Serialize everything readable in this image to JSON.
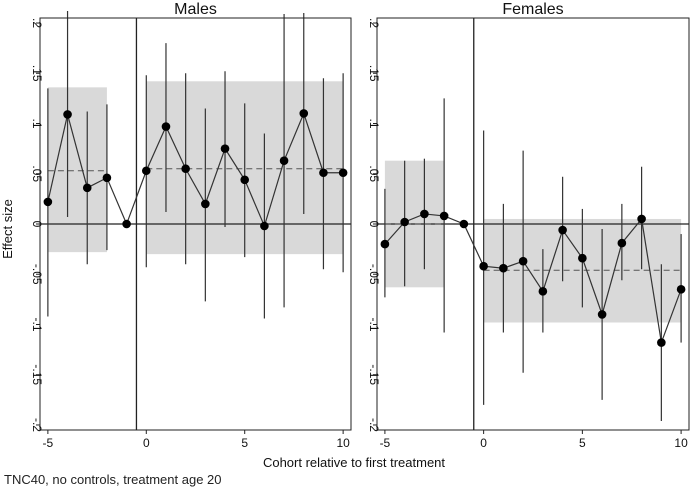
{
  "caption": "TNC40, no controls, treatment age 20",
  "chart_data": [
    {
      "type": "scatter",
      "panel": "Males",
      "title": "Males",
      "xlabel": "Cohort relative to first treatment",
      "ylabel": "Effect size",
      "xlim": [
        -5.4,
        10.4
      ],
      "ylim": [
        -0.205,
        0.205
      ],
      "x_ticks": [
        -5,
        0,
        5,
        10
      ],
      "x_tick_labels": [
        "-5",
        "0",
        "5",
        "10"
      ],
      "y_ticks": [
        -0.2,
        -0.15,
        -0.1,
        -0.05,
        0,
        0.05,
        0.1,
        0.15,
        0.2
      ],
      "y_tick_labels": [
        "-.2",
        "-.15",
        "-.1",
        "-.05",
        "0",
        ".05",
        ".1",
        ".15",
        ".2"
      ],
      "treatment_line_x": -0.5,
      "zero_line": 0,
      "pre_band": {
        "x_start": -5,
        "x_end": -2,
        "low": -0.028,
        "high": 0.136,
        "mean": 0.053
      },
      "post_band": {
        "x_start": 0,
        "x_end": 10,
        "low": -0.03,
        "high": 0.142,
        "mean": 0.055
      },
      "series": [
        {
          "name": "estimate",
          "x": [
            -5,
            -4,
            -3,
            -2,
            -1,
            0,
            1,
            2,
            3,
            4,
            5,
            6,
            7,
            8,
            9,
            10
          ],
          "y": [
            0.022,
            0.109,
            0.036,
            0.046,
            0.0,
            0.053,
            0.097,
            0.055,
            0.02,
            0.075,
            0.044,
            -0.002,
            0.063,
            0.11,
            0.051,
            0.051
          ],
          "ci_low": [
            -0.092,
            0.007,
            -0.04,
            -0.026,
            null,
            -0.043,
            0.012,
            -0.04,
            -0.077,
            -0.003,
            -0.033,
            -0.094,
            -0.083,
            0.01,
            -0.045,
            -0.048
          ],
          "ci_high": [
            0.135,
            0.212,
            0.112,
            0.119,
            null,
            0.148,
            0.18,
            0.15,
            0.115,
            0.152,
            0.12,
            0.09,
            0.209,
            0.21,
            0.145,
            0.15
          ]
        }
      ]
    },
    {
      "type": "scatter",
      "panel": "Females",
      "title": "Females",
      "xlabel": "Cohort relative to first treatment",
      "ylabel": "Effect size",
      "xlim": [
        -5.4,
        10.4
      ],
      "ylim": [
        -0.205,
        0.205
      ],
      "x_ticks": [
        -5,
        0,
        5,
        10
      ],
      "x_tick_labels": [
        "-5",
        "0",
        "5",
        "10"
      ],
      "y_ticks": [
        -0.2,
        -0.15,
        -0.1,
        -0.05,
        0,
        0.05,
        0.1,
        0.15,
        0.2
      ],
      "y_tick_labels": [
        "-.2",
        "-.15",
        "-.1",
        "-.05",
        "0",
        ".05",
        ".1",
        ".15",
        ".2"
      ],
      "treatment_line_x": -0.5,
      "zero_line": 0,
      "pre_band": {
        "x_start": -5,
        "x_end": -2,
        "low": -0.063,
        "high": 0.063,
        "mean": 0.0
      },
      "post_band": {
        "x_start": 0,
        "x_end": 10,
        "low": -0.098,
        "high": 0.005,
        "mean": -0.046
      },
      "series": [
        {
          "name": "estimate",
          "x": [
            -5,
            -4,
            -3,
            -2,
            -1,
            0,
            1,
            2,
            3,
            4,
            5,
            6,
            7,
            8,
            9,
            10
          ],
          "y": [
            -0.02,
            0.002,
            0.01,
            0.008,
            0.0,
            -0.042,
            -0.044,
            -0.037,
            -0.067,
            -0.006,
            -0.034,
            -0.09,
            -0.019,
            0.005,
            -0.118,
            -0.065
          ],
          "ci_low": [
            -0.073,
            -0.062,
            -0.045,
            -0.108,
            null,
            -0.18,
            -0.108,
            -0.148,
            -0.108,
            -0.057,
            -0.083,
            -0.175,
            -0.056,
            -0.045,
            -0.196,
            -0.118
          ],
          "ci_high": [
            0.035,
            0.063,
            0.065,
            0.125,
            null,
            0.093,
            0.02,
            0.073,
            -0.025,
            0.047,
            0.015,
            -0.005,
            0.02,
            0.057,
            -0.04,
            -0.01
          ]
        }
      ]
    }
  ]
}
